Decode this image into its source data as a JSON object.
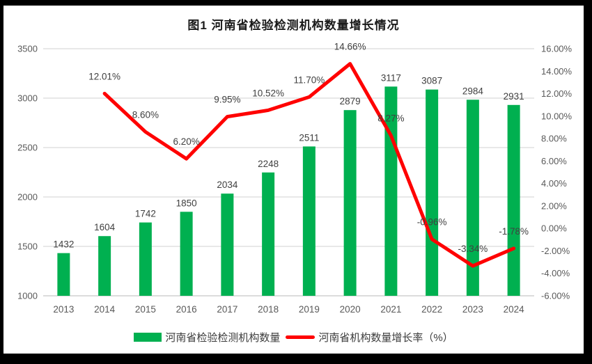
{
  "title": "图1  河南省检验检测机构数量增长情况",
  "legend": [
    {
      "label": "河南省检验检测机构数量",
      "type": "bar",
      "color": "#00B050"
    },
    {
      "label": "河南省机构数量增长率（%）",
      "type": "line",
      "color": "#FF0000"
    }
  ],
  "colors": {
    "bar": "#00B050",
    "line": "#FF0000",
    "grid": "#D9D9D9",
    "baseline_grid": "#C6C6C6",
    "axis_text": "#595959",
    "data_label": "#404040",
    "frame": "#000000",
    "background": "#FFFFFF"
  },
  "chart_data": {
    "type": "combo-bar-line",
    "title": "图1  河南省检验检测机构数量增长情况",
    "categories": [
      "2013",
      "2014",
      "2015",
      "2016",
      "2017",
      "2018",
      "2019",
      "2020",
      "2021",
      "2022",
      "2023",
      "2024"
    ],
    "series": [
      {
        "name": "河南省检验检测机构数量",
        "type": "bar",
        "axis": "left",
        "color": "#00B050",
        "values": [
          1432,
          1604,
          1742,
          1850,
          2034,
          2248,
          2511,
          2879,
          3117,
          3087,
          2984,
          2931
        ],
        "labels": [
          "1432",
          "1604",
          "1742",
          "1850",
          "2034",
          "2248",
          "2511",
          "2879",
          "3117",
          "3087",
          "2984",
          "2931"
        ]
      },
      {
        "name": "河南省机构数量增长率（%）",
        "type": "line",
        "axis": "right",
        "color": "#FF0000",
        "values": [
          null,
          12.01,
          8.6,
          6.2,
          9.95,
          10.52,
          11.7,
          14.66,
          8.27,
          -0.96,
          -3.34,
          -1.78
        ],
        "labels": [
          "",
          "12.01%",
          "8.60%",
          "6.20%",
          "9.95%",
          "10.52%",
          "11.70%",
          "14.66%",
          "8.27%",
          "-0.96%",
          "-3.34%",
          "-1.78%"
        ]
      }
    ],
    "left_axis": {
      "min": 1000,
      "max": 3500,
      "step": 500,
      "ticks": [
        "3500",
        "3000",
        "2500",
        "2000",
        "1500",
        "1000"
      ]
    },
    "right_axis": {
      "min": -6,
      "max": 16,
      "step": 2,
      "ticks": [
        "16.00%",
        "14.00%",
        "12.00%",
        "10.00%",
        "8.00%",
        "6.00%",
        "4.00%",
        "2.00%",
        "0.00%",
        "-2.00%",
        "-4.00%",
        "-6.00%"
      ]
    },
    "grid": true,
    "legend_position": "bottom"
  }
}
